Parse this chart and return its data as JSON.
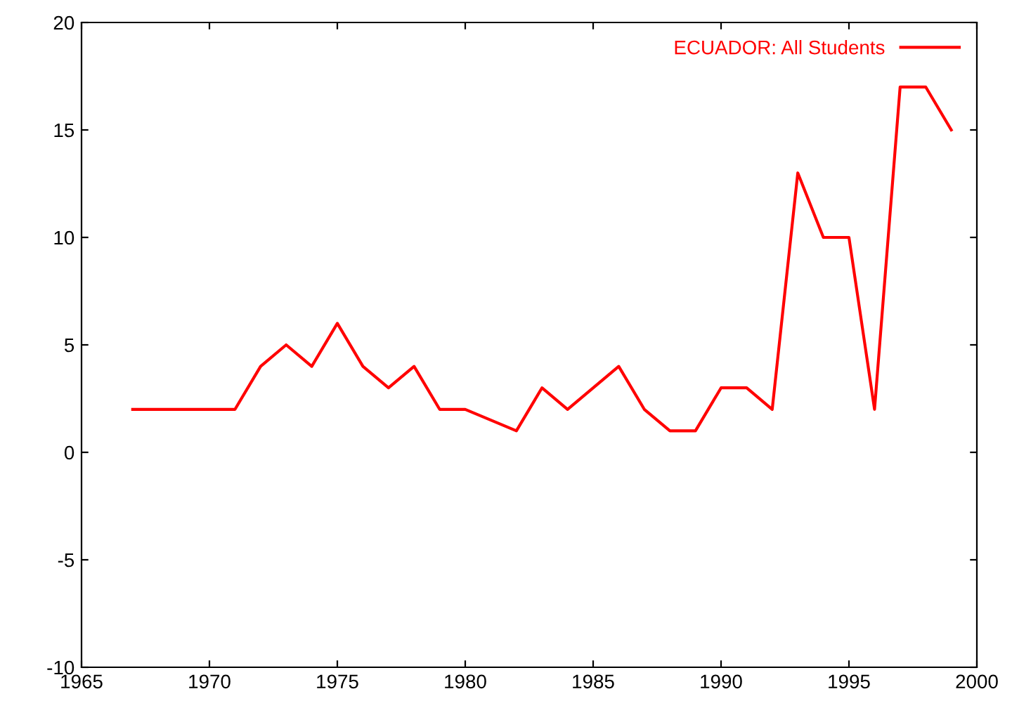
{
  "chart_data": {
    "type": "line",
    "series": [
      {
        "name": "ECUADOR: All Students",
        "color": "#ff0000",
        "x": [
          1967,
          1971,
          1972,
          1973,
          1974,
          1975,
          1976,
          1977,
          1978,
          1979,
          1980,
          1982,
          1983,
          1984,
          1986,
          1987,
          1988,
          1989,
          1990,
          1991,
          1992,
          1993,
          1994,
          1995,
          1996,
          1997,
          1998,
          1999
        ],
        "values": [
          2,
          2,
          4,
          5,
          4,
          6,
          4,
          3,
          4,
          2,
          2,
          1,
          3,
          2,
          4,
          2,
          1,
          1,
          3,
          3,
          2,
          13,
          10,
          10,
          2,
          17,
          17,
          15
        ]
      }
    ],
    "xlim": [
      1965,
      2000
    ],
    "xticks": [
      1965,
      1970,
      1975,
      1980,
      1985,
      1990,
      1995,
      2000
    ],
    "ylim": [
      -10,
      20
    ],
    "yticks": [
      -10,
      -5,
      0,
      5,
      10,
      15,
      20
    ],
    "legend": "top right",
    "grid": false,
    "marker": "none",
    "line_style": "solid"
  }
}
